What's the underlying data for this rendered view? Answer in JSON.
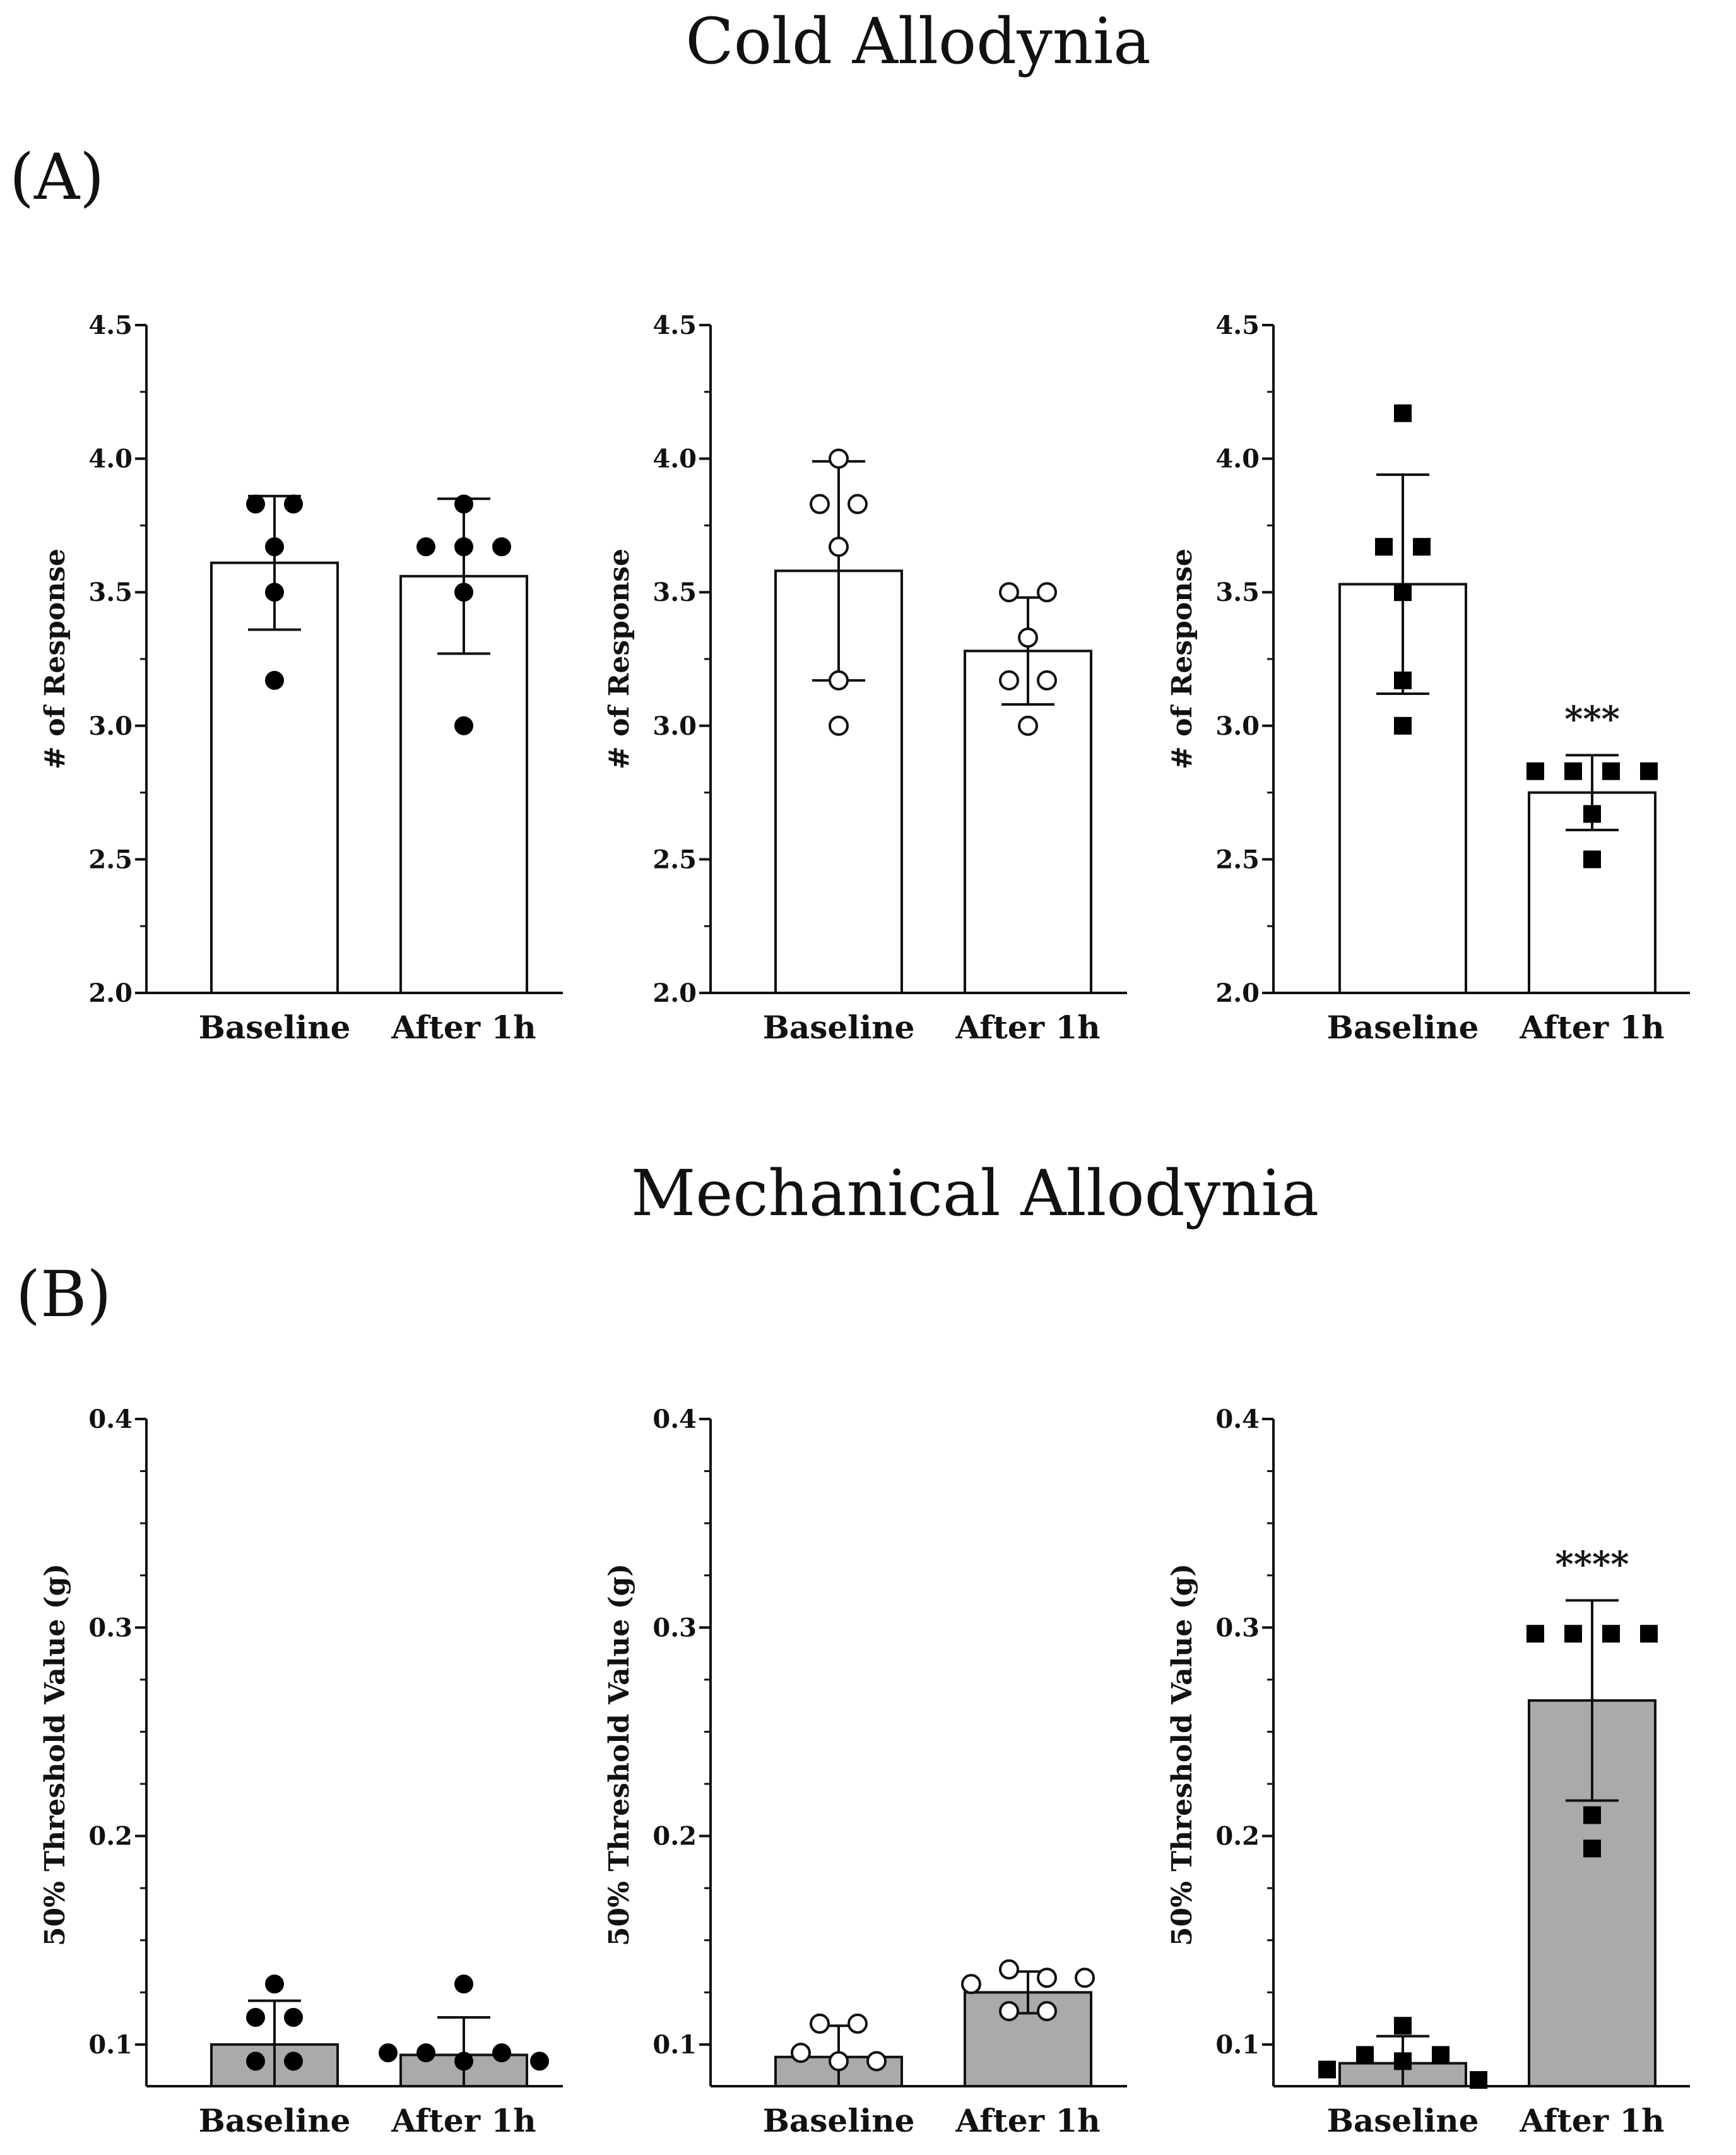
{
  "titles": {
    "cold": "Cold Allodynia",
    "mechanical": "Mechanical Allodynia"
  },
  "panel_labels": {
    "a": "(A)",
    "b": "(B)"
  },
  "chart_data": [
    {
      "type": "bar",
      "panel": "A",
      "index": 1,
      "ylabel": "# of Response",
      "categories": [
        "Baseline",
        "After 1h"
      ],
      "ylim": [
        2.0,
        4.5
      ],
      "yticks": [
        "2.0",
        "2.5",
        "3.0",
        "3.5",
        "4.0",
        "4.5"
      ],
      "yticks_num": [
        2.0,
        2.5,
        3.0,
        3.5,
        4.0,
        4.5
      ],
      "minor_ticks": [
        2.25,
        2.75,
        3.25,
        3.75,
        4.25
      ],
      "values": [
        3.61,
        3.56
      ],
      "sd": [
        0.25,
        0.29
      ],
      "bar_color": "#ffffff",
      "marker": "circle-filled",
      "points": [
        [
          3.83,
          3.83,
          3.67,
          3.5,
          3.17
        ],
        [
          3.83,
          3.67,
          3.67,
          3.67,
          3.5,
          3.0
        ]
      ],
      "significance": [
        "",
        ""
      ]
    },
    {
      "type": "bar",
      "panel": "A",
      "index": 2,
      "ylabel": "# of Response",
      "categories": [
        "Baseline",
        "After 1h"
      ],
      "ylim": [
        2.0,
        4.5
      ],
      "yticks": [
        "2.0",
        "2.5",
        "3.0",
        "3.5",
        "4.0",
        "4.5"
      ],
      "yticks_num": [
        2.0,
        2.5,
        3.0,
        3.5,
        4.0,
        4.5
      ],
      "minor_ticks": [
        2.25,
        2.75,
        3.25,
        3.75,
        4.25
      ],
      "values": [
        3.58,
        3.28
      ],
      "sd": [
        0.41,
        0.2
      ],
      "bar_color": "#ffffff",
      "marker": "circle-open",
      "points": [
        [
          4.0,
          3.83,
          3.83,
          3.67,
          3.17,
          3.0
        ],
        [
          3.5,
          3.5,
          3.33,
          3.17,
          3.17,
          3.0
        ]
      ],
      "significance": [
        "",
        ""
      ]
    },
    {
      "type": "bar",
      "panel": "A",
      "index": 3,
      "ylabel": "# of Response",
      "categories": [
        "Baseline",
        "After 1h"
      ],
      "ylim": [
        2.0,
        4.5
      ],
      "yticks": [
        "2.0",
        "2.5",
        "3.0",
        "3.5",
        "4.0",
        "4.5"
      ],
      "yticks_num": [
        2.0,
        2.5,
        3.0,
        3.5,
        4.0,
        4.5
      ],
      "minor_ticks": [
        2.25,
        2.75,
        3.25,
        3.75,
        4.25
      ],
      "values": [
        3.53,
        2.75
      ],
      "sd": [
        0.41,
        0.14
      ],
      "bar_color": "#ffffff",
      "marker": "square-filled",
      "points": [
        [
          4.17,
          3.67,
          3.67,
          3.5,
          3.17,
          3.0
        ],
        [
          2.83,
          2.83,
          2.83,
          2.83,
          2.67,
          2.5
        ]
      ],
      "significance": [
        "",
        "***"
      ]
    },
    {
      "type": "bar",
      "panel": "B",
      "index": 1,
      "ylabel": "50% Threshold Value (g)",
      "categories": [
        "Baseline",
        "After 1h"
      ],
      "ylim": [
        0.08,
        0.4
      ],
      "yticks": [
        "0.1",
        "0.2",
        "0.3",
        "0.4"
      ],
      "yticks_num": [
        0.1,
        0.2,
        0.3,
        0.4
      ],
      "minor_ticks": [
        0.125,
        0.15,
        0.175,
        0.225,
        0.25,
        0.275,
        0.325,
        0.35,
        0.375
      ],
      "values": [
        0.1,
        0.095
      ],
      "sd": [
        0.021,
        0.018
      ],
      "bar_color": "#aaaaaa",
      "marker": "circle-filled",
      "points": [
        [
          0.129,
          0.113,
          0.113,
          0.092,
          0.092
        ],
        [
          0.129,
          0.096,
          0.096,
          0.092,
          0.096,
          0.092
        ]
      ],
      "significance": [
        "",
        ""
      ]
    },
    {
      "type": "bar",
      "panel": "B",
      "index": 2,
      "ylabel": "50% Threshold Value (g)",
      "categories": [
        "Baseline",
        "After 1h"
      ],
      "ylim": [
        0.08,
        0.4
      ],
      "yticks": [
        "0.1",
        "0.2",
        "0.3",
        "0.4"
      ],
      "yticks_num": [
        0.1,
        0.2,
        0.3,
        0.4
      ],
      "minor_ticks": [
        0.125,
        0.15,
        0.175,
        0.225,
        0.25,
        0.275,
        0.325,
        0.35,
        0.375
      ],
      "values": [
        0.094,
        0.125
      ],
      "sd": [
        0.015,
        0.01
      ],
      "bar_color": "#aaaaaa",
      "marker": "circle-open",
      "points": [
        [
          0.11,
          0.11,
          0.096,
          0.092,
          0.092
        ],
        [
          0.129,
          0.136,
          0.132,
          0.132,
          0.116,
          0.116
        ]
      ],
      "significance": [
        "",
        ""
      ]
    },
    {
      "type": "bar",
      "panel": "B",
      "index": 3,
      "ylabel": "50% Threshold Value (g)",
      "categories": [
        "Baseline",
        "After 1h"
      ],
      "ylim": [
        0.08,
        0.4
      ],
      "yticks": [
        "0.1",
        "0.2",
        "0.3",
        "0.4"
      ],
      "yticks_num": [
        0.1,
        0.2,
        0.3,
        0.4
      ],
      "minor_ticks": [
        0.125,
        0.15,
        0.175,
        0.225,
        0.25,
        0.275,
        0.325,
        0.35,
        0.375
      ],
      "values": [
        0.091,
        0.265
      ],
      "sd": [
        0.013,
        0.048
      ],
      "bar_color": "#aaaaaa",
      "marker": "square-filled",
      "points": [
        [
          0.088,
          0.095,
          0.109,
          0.092,
          0.095,
          0.083
        ],
        [
          0.297,
          0.297,
          0.297,
          0.297,
          0.21,
          0.194
        ]
      ],
      "significance": [
        "",
        "****"
      ]
    }
  ]
}
